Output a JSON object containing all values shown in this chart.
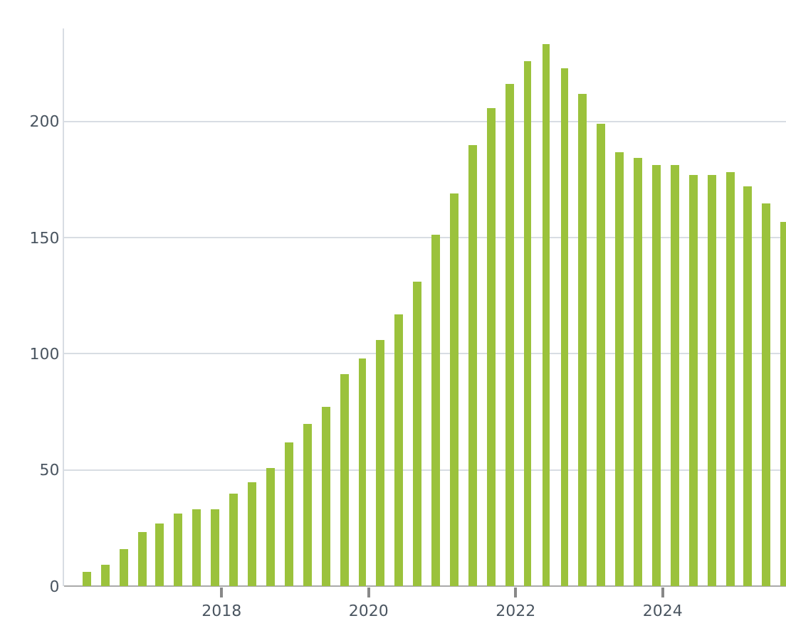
{
  "chart_data": {
    "type": "bar",
    "color": "#9bc23c",
    "x": [
      "2016-03-01",
      "2016-06-01",
      "2016-09-01",
      "2016-12-01",
      "2017-03-01",
      "2017-06-01",
      "2017-09-01",
      "2017-12-01",
      "2018-03-01",
      "2018-06-01",
      "2018-09-01",
      "2018-12-01",
      "2019-03-01",
      "2019-06-01",
      "2019-09-01",
      "2019-12-01",
      "2020-03-01",
      "2020-06-01",
      "2020-09-01",
      "2020-12-01",
      "2021-03-01",
      "2021-06-01",
      "2021-09-01",
      "2021-12-01",
      "2022-03-01",
      "2022-06-01",
      "2022-09-01",
      "2022-12-01",
      "2023-03-01",
      "2023-06-01",
      "2023-09-01",
      "2023-12-01",
      "2024-03-01",
      "2024-06-01",
      "2024-09-01",
      "2024-12-01",
      "2025-03-01",
      "2025-06-01",
      "2025-09-01"
    ],
    "values": [
      6,
      9,
      16,
      23,
      27,
      31,
      33,
      33,
      40,
      45,
      51,
      62,
      70,
      77,
      91,
      98,
      106,
      117,
      131,
      151,
      169,
      190,
      206,
      216,
      226,
      233,
      223,
      212,
      199,
      187,
      184,
      181,
      181,
      177,
      177,
      178,
      172,
      165,
      157
    ],
    "xlim": [
      "2015-11-10",
      "2025-09-05"
    ],
    "xticks": [
      "2018",
      "2020",
      "2022",
      "2024"
    ],
    "ylim": [
      0,
      240
    ],
    "yticks": [
      0,
      50,
      100,
      150,
      200
    ],
    "grid": "y"
  }
}
